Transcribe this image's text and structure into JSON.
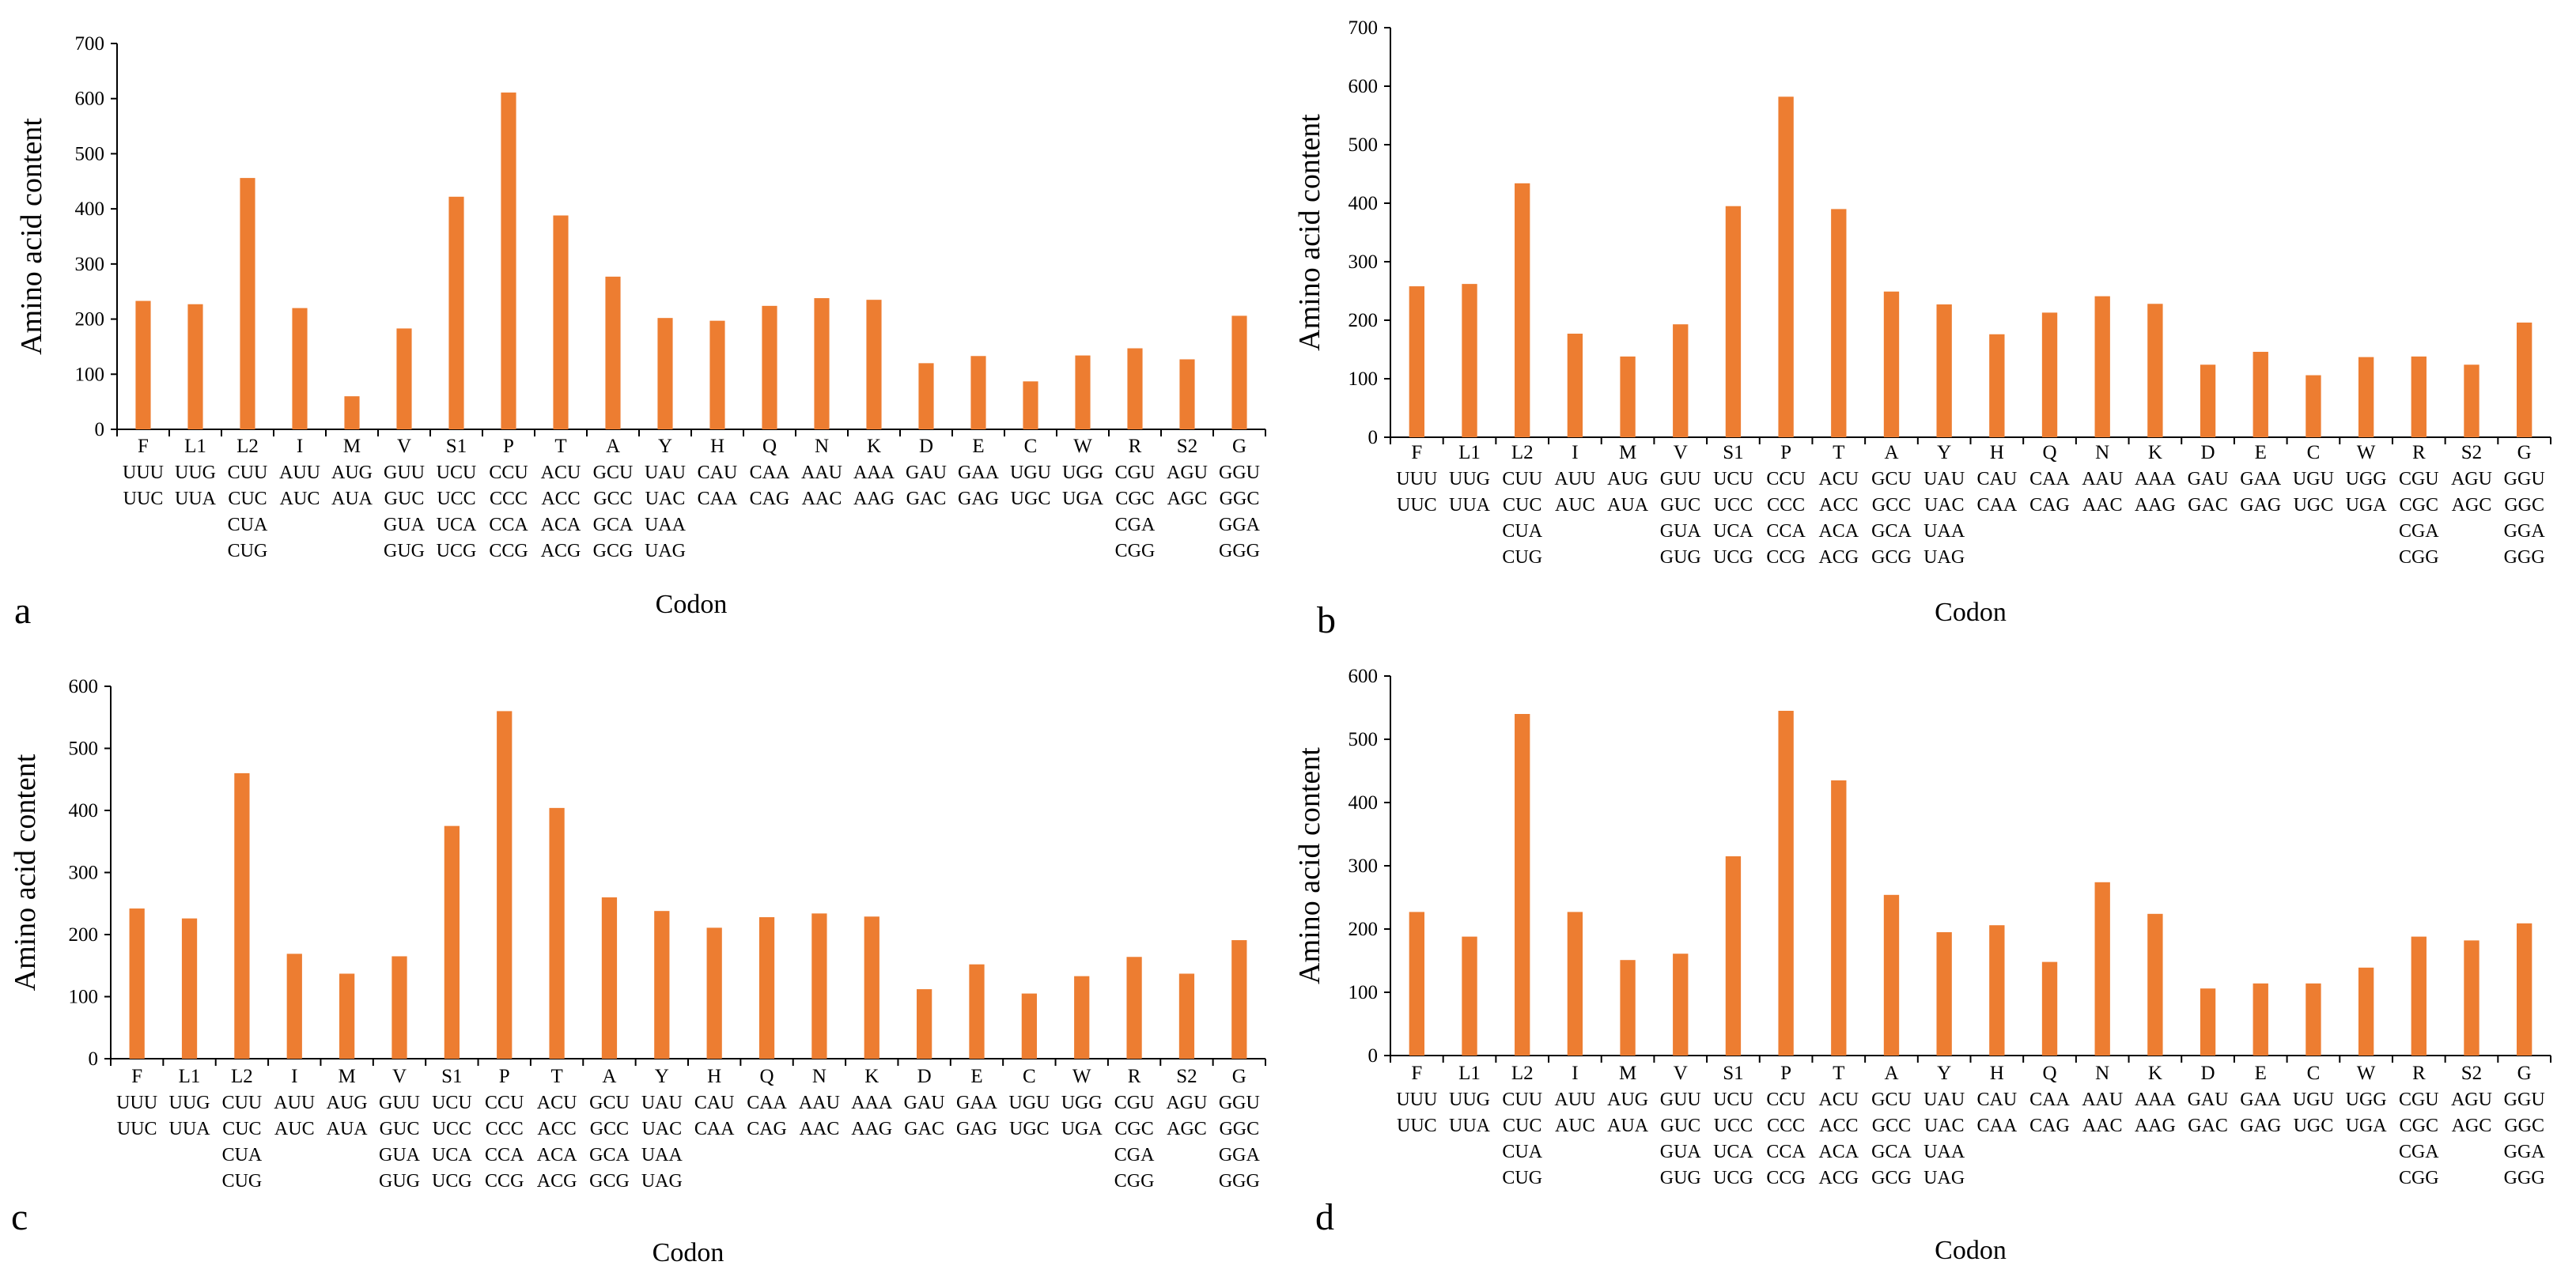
{
  "figure": {
    "common": {
      "categories": [
        "F",
        "L1",
        "L2",
        "I",
        "M",
        "V",
        "S1",
        "P",
        "T",
        "A",
        "Y",
        "H",
        "Q",
        "N",
        "K",
        "D",
        "E",
        "C",
        "W",
        "R",
        "S2",
        "G"
      ],
      "codons": [
        [
          "UUU",
          "UUC"
        ],
        [
          "UUG",
          "UUA"
        ],
        [
          "CUU",
          "CUC",
          "CUA",
          "CUG"
        ],
        [
          "AUU",
          "AUC"
        ],
        [
          "AUG",
          "AUA"
        ],
        [
          "GUU",
          "GUC",
          "GUA",
          "GUG"
        ],
        [
          "UCU",
          "UCC",
          "UCA",
          "UCG"
        ],
        [
          "CCU",
          "CCC",
          "CCA",
          "CCG"
        ],
        [
          "ACU",
          "ACC",
          "ACA",
          "ACG"
        ],
        [
          "GCU",
          "GCC",
          "GCA",
          "GCG"
        ],
        [
          "UAU",
          "UAC",
          "UAA",
          "UAG"
        ],
        [
          "CAU",
          "CAA"
        ],
        [
          "CAA",
          "CAG"
        ],
        [
          "AAU",
          "AAC"
        ],
        [
          "AAA",
          "AAG"
        ],
        [
          "GAU",
          "GAC"
        ],
        [
          "GAA",
          "GAG"
        ],
        [
          "UGU",
          "UGC"
        ],
        [
          "UGG",
          "UGA"
        ],
        [
          "CGU",
          "CGC",
          "CGA",
          "CGG"
        ],
        [
          "AGU",
          "AGC"
        ],
        [
          "GGU",
          "GGC",
          "GGA",
          "GGG"
        ]
      ],
      "bar_color": "#ED7D31"
    }
  },
  "chart_data": [
    {
      "type": "bar",
      "panel_label": "a",
      "title": "",
      "xlabel": "Codon",
      "ylabel": "Amino acid content",
      "ylim": [
        0,
        700
      ],
      "yticks": [
        "0",
        "100",
        "200",
        "300",
        "400",
        "500",
        "600",
        "700"
      ],
      "categories": [
        "F",
        "L1",
        "L2",
        "I",
        "M",
        "V",
        "S1",
        "P",
        "T",
        "A",
        "Y",
        "H",
        "Q",
        "N",
        "K",
        "D",
        "E",
        "C",
        "W",
        "R",
        "S2",
        "G"
      ],
      "values": [
        233,
        227,
        456,
        220,
        60,
        183,
        422,
        611,
        388,
        277,
        202,
        197,
        224,
        238,
        235,
        120,
        133,
        87,
        134,
        147,
        127,
        206
      ]
    },
    {
      "type": "bar",
      "panel_label": "b",
      "title": "",
      "xlabel": "Codon",
      "ylabel": "Amino acid content",
      "ylim": [
        0,
        700
      ],
      "yticks": [
        "0",
        "100",
        "200",
        "300",
        "400",
        "500",
        "600",
        "700"
      ],
      "categories": [
        "F",
        "L1",
        "L2",
        "I",
        "M",
        "V",
        "S1",
        "P",
        "T",
        "A",
        "Y",
        "H",
        "Q",
        "N",
        "K",
        "D",
        "E",
        "C",
        "W",
        "R",
        "S2",
        "G"
      ],
      "values": [
        258,
        262,
        434,
        177,
        138,
        193,
        395,
        582,
        390,
        249,
        227,
        176,
        213,
        241,
        228,
        124,
        146,
        106,
        137,
        138,
        124,
        196
      ]
    },
    {
      "type": "bar",
      "panel_label": "c",
      "title": "",
      "xlabel": "Codon",
      "ylabel": "Amino acid content",
      "ylim": [
        0,
        600
      ],
      "yticks": [
        "0",
        "100",
        "200",
        "300",
        "400",
        "500",
        "600"
      ],
      "categories": [
        "F",
        "L1",
        "L2",
        "I",
        "M",
        "V",
        "S1",
        "P",
        "T",
        "A",
        "Y",
        "H",
        "Q",
        "N",
        "K",
        "D",
        "E",
        "C",
        "W",
        "R",
        "S2",
        "G"
      ],
      "values": [
        242,
        226,
        460,
        169,
        137,
        165,
        375,
        560,
        404,
        260,
        238,
        211,
        228,
        234,
        229,
        112,
        152,
        105,
        133,
        164,
        137,
        191
      ]
    },
    {
      "type": "bar",
      "panel_label": "d",
      "title": "",
      "xlabel": "Codon",
      "ylabel": "Amino acid content",
      "ylim": [
        0,
        600
      ],
      "yticks": [
        "0",
        "100",
        "200",
        "300",
        "400",
        "500",
        "600"
      ],
      "categories": [
        "F",
        "L1",
        "L2",
        "I",
        "M",
        "V",
        "S1",
        "P",
        "T",
        "A",
        "Y",
        "H",
        "Q",
        "N",
        "K",
        "D",
        "E",
        "C",
        "W",
        "R",
        "S2",
        "G"
      ],
      "values": [
        227,
        188,
        540,
        227,
        151,
        161,
        315,
        545,
        435,
        254,
        195,
        206,
        148,
        274,
        224,
        106,
        114,
        114,
        139,
        188,
        182,
        209
      ]
    }
  ]
}
